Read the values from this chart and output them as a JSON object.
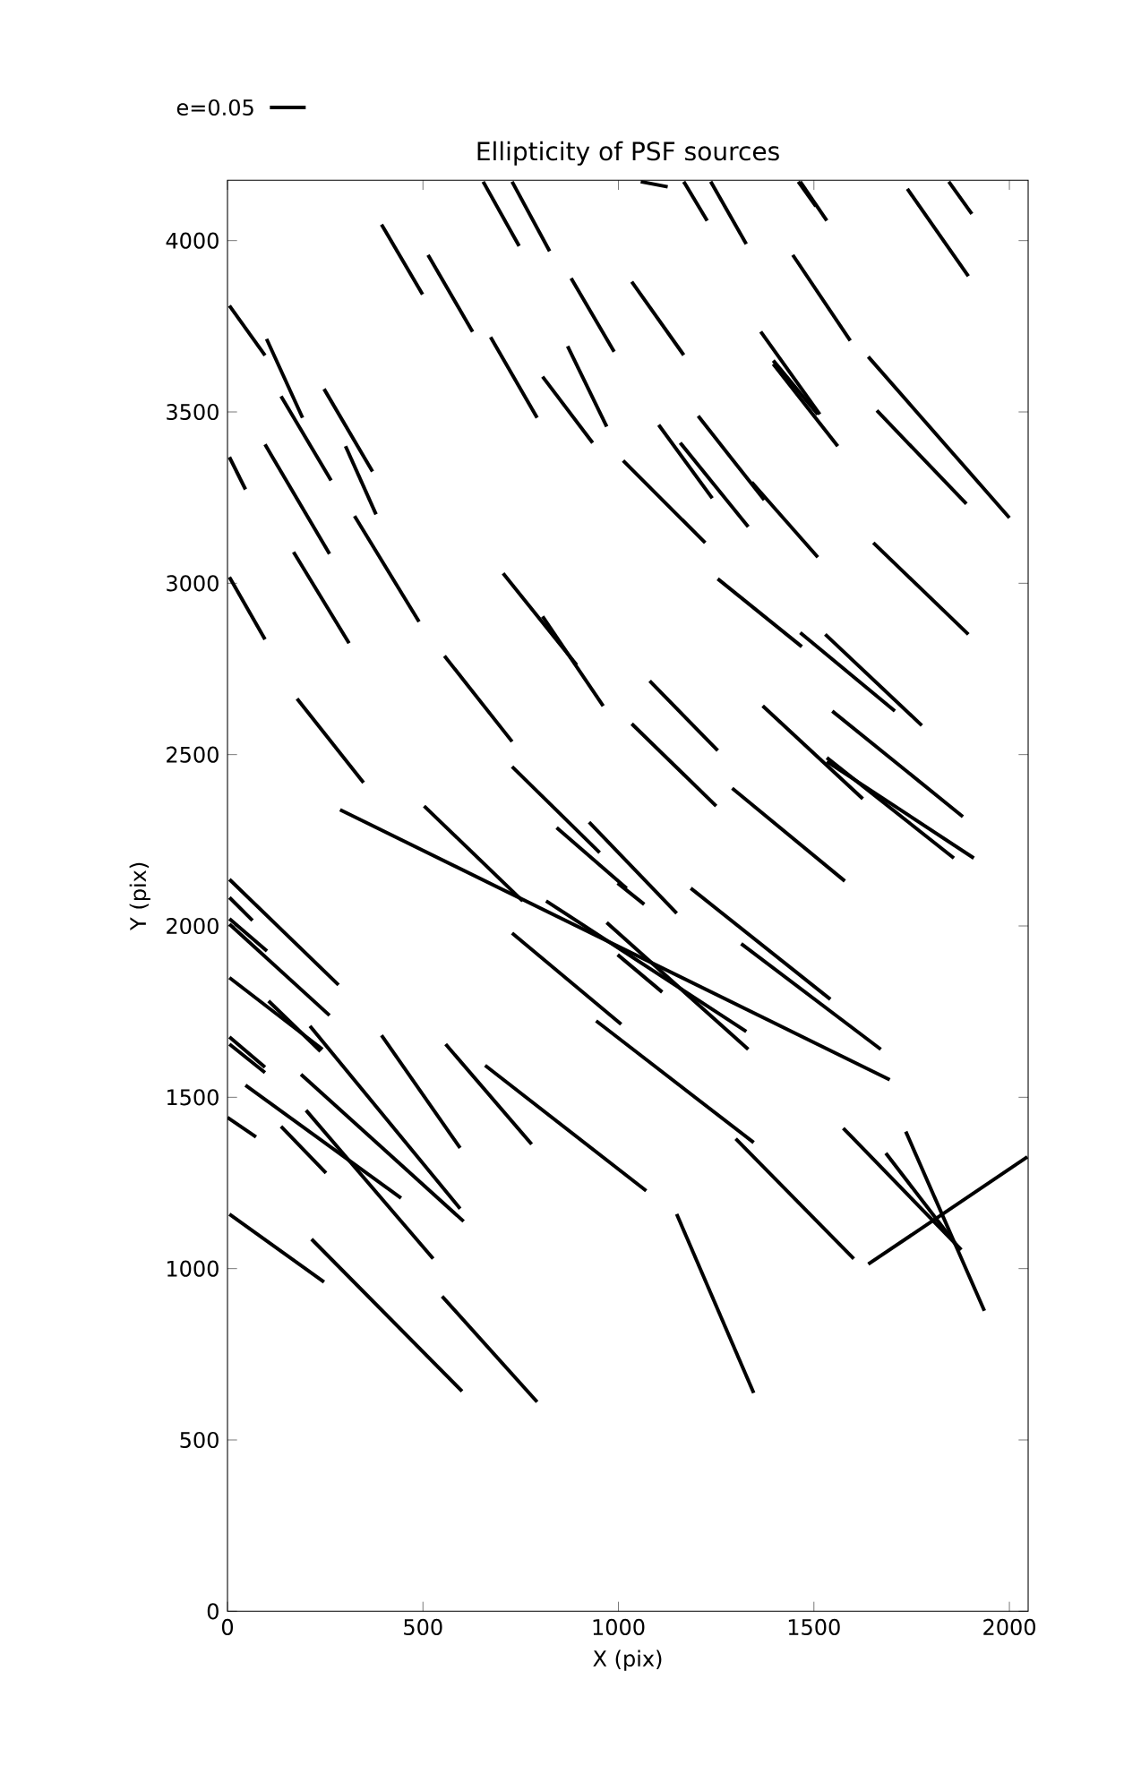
{
  "chart_data": {
    "type": "line",
    "title": "Ellipticity of PSF sources",
    "xlabel": "X (pix)",
    "ylabel": "Y (pix)",
    "annotations": [
      "e=0.05"
    ],
    "color": "#000000",
    "xlim": [
      0,
      2048
    ],
    "ylim": [
      0,
      4176
    ],
    "xticks": [
      0,
      500,
      1000,
      1500,
      2000
    ],
    "yticks": [
      0,
      500,
      1000,
      1500,
      2000,
      2500,
      3000,
      3500,
      4000
    ],
    "series": [
      {
        "x": [
          5,
          96
        ],
        "values": [
          3810,
          3665
        ]
      },
      {
        "x": [
          100,
          192
        ],
        "values": [
          3713,
          3483
        ]
      },
      {
        "x": [
          137,
          265
        ],
        "values": [
          3546,
          3300
        ]
      },
      {
        "x": [
          247,
          371
        ],
        "values": [
          3567,
          3326
        ]
      },
      {
        "x": [
          5,
          46
        ],
        "values": [
          3368,
          3274
        ]
      },
      {
        "x": [
          96,
          261
        ],
        "values": [
          3405,
          3086
        ]
      },
      {
        "x": [
          302,
          380
        ],
        "values": [
          3400,
          3201
        ]
      },
      {
        "x": [
          325,
          490
        ],
        "values": [
          3196,
          2888
        ]
      },
      {
        "x": [
          5,
          96
        ],
        "values": [
          3018,
          2836
        ]
      },
      {
        "x": [
          169,
          311
        ],
        "values": [
          3091,
          2825
        ]
      },
      {
        "x": [
          394,
          499
        ],
        "values": [
          4047,
          3843
        ]
      },
      {
        "x": [
          513,
          627
        ],
        "values": [
          3958,
          3734
        ]
      },
      {
        "x": [
          654,
          746
        ],
        "values": [
          4172,
          3984
        ]
      },
      {
        "x": [
          728,
          824
        ],
        "values": [
          4172,
          3969
        ]
      },
      {
        "x": [
          879,
          989
        ],
        "values": [
          3890,
          3676
        ]
      },
      {
        "x": [
          673,
          792
        ],
        "values": [
          3718,
          3483
        ]
      },
      {
        "x": [
          806,
          934
        ],
        "values": [
          3603,
          3410
        ]
      },
      {
        "x": [
          870,
          970
        ],
        "values": [
          3692,
          3457
        ]
      },
      {
        "x": [
          705,
          893
        ],
        "values": [
          3029,
          2762
        ]
      },
      {
        "x": [
          806,
          961
        ],
        "values": [
          2903,
          2642
        ]
      },
      {
        "x": [
          555,
          728
        ],
        "values": [
          2788,
          2538
        ]
      },
      {
        "x": [
          1057,
          1126
        ],
        "values": [
          4172,
          4157
        ]
      },
      {
        "x": [
          1167,
          1227
        ],
        "values": [
          4172,
          4058
        ]
      },
      {
        "x": [
          1236,
          1327
        ],
        "values": [
          4172,
          3990
        ]
      },
      {
        "x": [
          1465,
          1533
        ],
        "values": [
          4172,
          4058
        ]
      },
      {
        "x": [
          1460,
          1505
        ],
        "values": [
          4172,
          4100
        ]
      },
      {
        "x": [
          1739,
          1895
        ],
        "values": [
          4151,
          3896
        ]
      },
      {
        "x": [
          1845,
          1904
        ],
        "values": [
          4172,
          4078
        ]
      },
      {
        "x": [
          1034,
          1167
        ],
        "values": [
          3880,
          3666
        ]
      },
      {
        "x": [
          1446,
          1593
        ],
        "values": [
          3958,
          3708
        ]
      },
      {
        "x": [
          1364,
          1515
        ],
        "values": [
          3734,
          3493
        ]
      },
      {
        "x": [
          1396,
          1510
        ],
        "values": [
          3650,
          3493
        ]
      },
      {
        "x": [
          1396,
          1561
        ],
        "values": [
          3640,
          3400
        ]
      },
      {
        "x": [
          1639,
          2000
        ],
        "values": [
          3661,
          3191
        ]
      },
      {
        "x": [
          1661,
          1890
        ],
        "values": [
          3504,
          3232
        ]
      },
      {
        "x": [
          1204,
          1373
        ],
        "values": [
          3488,
          3243
        ]
      },
      {
        "x": [
          1103,
          1240
        ],
        "values": [
          3462,
          3248
        ]
      },
      {
        "x": [
          1158,
          1332
        ],
        "values": [
          3410,
          3165
        ]
      },
      {
        "x": [
          1341,
          1510
        ],
        "values": [
          3295,
          3076
        ]
      },
      {
        "x": [
          1012,
          1222
        ],
        "values": [
          3358,
          3118
        ]
      },
      {
        "x": [
          1652,
          1895
        ],
        "values": [
          3118,
          2851
        ]
      },
      {
        "x": [
          1254,
          1469
        ],
        "values": [
          3013,
          2815
        ]
      },
      {
        "x": [
          1465,
          1707
        ],
        "values": [
          2856,
          2627
        ]
      },
      {
        "x": [
          1529,
          1776
        ],
        "values": [
          2851,
          2585
        ]
      },
      {
        "x": [
          1080,
          1254
        ],
        "values": [
          2715,
          2512
        ]
      },
      {
        "x": [
          1034,
          1250
        ],
        "values": [
          2590,
          2350
        ]
      },
      {
        "x": [
          1369,
          1625
        ],
        "values": [
          2642,
          2371
        ]
      },
      {
        "x": [
          1533,
          1858
        ],
        "values": [
          2491,
          2198
        ]
      },
      {
        "x": [
          1533,
          1909
        ],
        "values": [
          2480,
          2198
        ]
      },
      {
        "x": [
          1547,
          1881
        ],
        "values": [
          2627,
          2319
        ]
      },
      {
        "x": [
          1291,
          1579
        ],
        "values": [
          2402,
          2131
        ]
      },
      {
        "x": [
          842,
          1021
        ],
        "values": [
          2287,
          2110
        ]
      },
      {
        "x": [
          925,
          1149
        ],
        "values": [
          2303,
          2037
        ]
      },
      {
        "x": [
          998,
          1066
        ],
        "values": [
          2125,
          2063
        ]
      },
      {
        "x": [
          1185,
          1542
        ],
        "values": [
          2110,
          1786
        ]
      },
      {
        "x": [
          1314,
          1671
        ],
        "values": [
          1948,
          1640
        ]
      },
      {
        "x": [
          288,
          1694
        ],
        "values": [
          2339,
          1551
        ]
      },
      {
        "x": [
          998,
          1112
        ],
        "values": [
          1916,
          1807
        ]
      },
      {
        "x": [
          815,
          1327
        ],
        "values": [
          2073,
          1692
        ]
      },
      {
        "x": [
          970,
          1332
        ],
        "values": [
          2010,
          1640
        ]
      },
      {
        "x": [
          178,
          348
        ],
        "values": [
          2663,
          2418
        ]
      },
      {
        "x": [
          503,
          755
        ],
        "values": [
          2350,
          2073
        ]
      },
      {
        "x": [
          728,
          952
        ],
        "values": [
          2465,
          2214
        ]
      },
      {
        "x": [
          728,
          1007
        ],
        "values": [
          1979,
          1713
        ]
      },
      {
        "x": [
          943,
          1346
        ],
        "values": [
          1723,
          1368
        ]
      },
      {
        "x": [
          5,
          284
        ],
        "values": [
          2136,
          1828
        ]
      },
      {
        "x": [
          5,
          64
        ],
        "values": [
          2083,
          2016
        ]
      },
      {
        "x": [
          5,
          101
        ],
        "values": [
          2021,
          1927
        ]
      },
      {
        "x": [
          5,
          261
        ],
        "values": [
          2005,
          1739
        ]
      },
      {
        "x": [
          5,
          243
        ],
        "values": [
          1849,
          1640
        ]
      },
      {
        "x": [
          105,
          238
        ],
        "values": [
          1781,
          1634
        ]
      },
      {
        "x": [
          5,
          96
        ],
        "values": [
          1676,
          1588
        ]
      },
      {
        "x": [
          5,
          96
        ],
        "values": [
          1655,
          1572
        ]
      },
      {
        "x": [
          137,
          252
        ],
        "values": [
          1415,
          1279
        ]
      },
      {
        "x": [
          46,
          444
        ],
        "values": [
          1535,
          1206
        ]
      },
      {
        "x": [
          188,
          604
        ],
        "values": [
          1567,
          1138
        ]
      },
      {
        "x": [
          201,
          526
        ],
        "values": [
          1462,
          1029
        ]
      },
      {
        "x": [
          0,
          73
        ],
        "values": [
          1441,
          1384
        ]
      },
      {
        "x": [
          394,
          595
        ],
        "values": [
          1681,
          1352
        ]
      },
      {
        "x": [
          211,
          595
        ],
        "values": [
          1708,
          1175
        ]
      },
      {
        "x": [
          558,
          778
        ],
        "values": [
          1655,
          1363
        ]
      },
      {
        "x": [
          659,
          1071
        ],
        "values": [
          1593,
          1227
        ]
      },
      {
        "x": [
          5,
          247
        ],
        "values": [
          1159,
          961
        ]
      },
      {
        "x": [
          215,
          600
        ],
        "values": [
          1086,
          642
        ]
      },
      {
        "x": [
          549,
          792
        ],
        "values": [
          919,
          611
        ]
      },
      {
        "x": [
          1149,
          1346
        ],
        "values": [
          1159,
          637
        ]
      },
      {
        "x": [
          1300,
          1602
        ],
        "values": [
          1379,
          1029
        ]
      },
      {
        "x": [
          1639,
          2046
        ],
        "values": [
          1013,
          1326
        ]
      },
      {
        "x": [
          1575,
          1877
        ],
        "values": [
          1410,
          1055
        ]
      },
      {
        "x": [
          1684,
          1867
        ],
        "values": [
          1337,
          1065
        ]
      },
      {
        "x": [
          1735,
          1936
        ],
        "values": [
          1400,
          877
        ]
      }
    ]
  }
}
